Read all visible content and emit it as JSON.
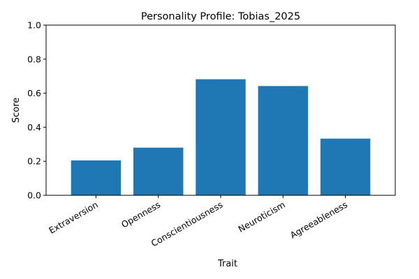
{
  "chart_data": {
    "type": "bar",
    "title": "Personality Profile: Tobias_2025",
    "xlabel": "Trait",
    "ylabel": "Score",
    "categories": [
      "Extraversion",
      "Openness",
      "Conscientiousness",
      "Neuroticism",
      "Agreeableness"
    ],
    "values": [
      0.205,
      0.28,
      0.682,
      0.642,
      0.333
    ],
    "ylim": [
      0,
      1
    ],
    "yticks": [
      "0.0",
      "0.2",
      "0.4",
      "0.6",
      "0.8",
      "1.0"
    ],
    "grid": false,
    "legend": "none",
    "bar_color": "#1f77b4"
  }
}
